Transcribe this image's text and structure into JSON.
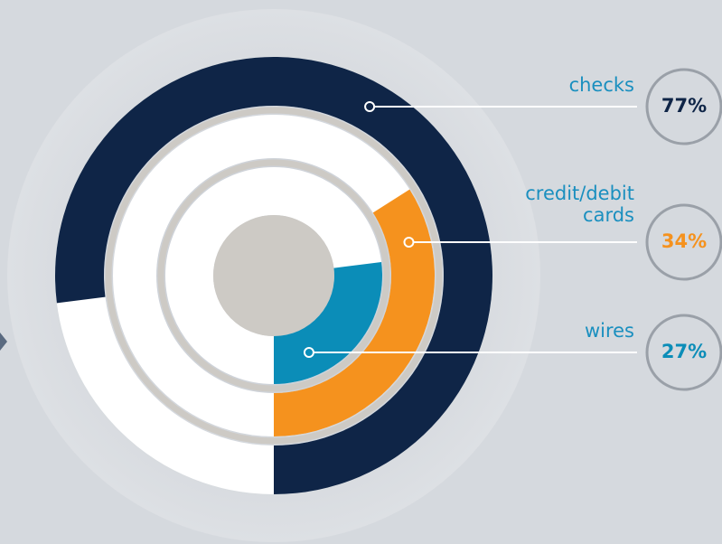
{
  "chart_data": {
    "type": "radial_bar",
    "categories": [
      "checks",
      "credit/debit cards",
      "wires"
    ],
    "values": [
      77,
      34,
      27
    ],
    "value_labels": [
      "77%",
      "34%",
      "27%"
    ],
    "colors": [
      "#0f2547",
      "#f5921e",
      "#0b8db8"
    ]
  }
}
